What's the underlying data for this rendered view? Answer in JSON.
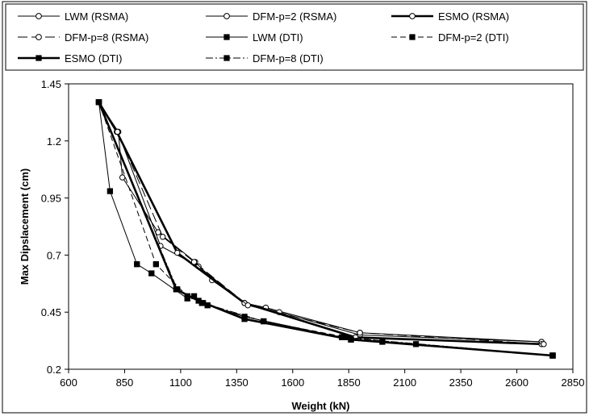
{
  "chart_data": {
    "type": "line",
    "title": "",
    "xlabel": "Weight (kN)",
    "ylabel": "Max Dipslacement (cm)",
    "xlim": [
      600,
      2850
    ],
    "ylim": [
      0.2,
      1.45
    ],
    "xticks": [
      "600",
      "850",
      "1100",
      "1350",
      "1600",
      "1850",
      "2100",
      "2350",
      "2600",
      "2850"
    ],
    "yticks": [
      "0.2",
      "0.45",
      "0.7",
      "0.95",
      "1.2",
      "1.45"
    ],
    "legend_position": "top",
    "series": [
      {
        "name": "LWM (RSMA)",
        "style": "thin-solid",
        "marker": "circle",
        "x": [
          735,
          822,
          840,
          1000,
          1165,
          1240,
          1385,
          1480,
          1900,
          2710
        ],
        "y": [
          1.37,
          1.24,
          1.04,
          0.8,
          0.67,
          0.59,
          0.49,
          0.47,
          0.36,
          0.32
        ]
      },
      {
        "name": "DFM-p=2 (RSMA)",
        "style": "thin-solid",
        "marker": "circle",
        "x": [
          735,
          820,
          1010,
          1180,
          1385,
          1540,
          1900,
          2710
        ],
        "y": [
          1.37,
          1.24,
          0.74,
          0.65,
          0.49,
          0.45,
          0.35,
          0.32
        ]
      },
      {
        "name": "ESMO (RSMA)",
        "style": "thick-solid",
        "marker": "circle",
        "x": [
          735,
          815,
          1085,
          1385,
          1880,
          2710
        ],
        "y": [
          1.37,
          1.24,
          0.71,
          0.49,
          0.34,
          0.31
        ]
      },
      {
        "name": "DFM-p=8 (RSMA)",
        "style": "long-dash",
        "marker": "circle",
        "x": [
          735,
          818,
          1020,
          1160,
          1400,
          1900,
          2720
        ],
        "y": [
          1.37,
          1.24,
          0.78,
          0.67,
          0.48,
          0.36,
          0.31
        ]
      },
      {
        "name": "LWM (DTI)",
        "style": "thin-solid",
        "marker": "square",
        "x": [
          735,
          785,
          905,
          970,
          1130,
          1160,
          1195,
          1385,
          1820,
          1860,
          2000,
          2760
        ],
        "y": [
          1.37,
          0.98,
          0.66,
          0.62,
          0.51,
          0.52,
          0.49,
          0.43,
          0.34,
          0.33,
          0.32,
          0.26
        ]
      },
      {
        "name": "DFM-p=2 (DTI)",
        "style": "dashed",
        "marker": "square",
        "x": [
          735,
          990,
          1130,
          1220,
          1470,
          1840,
          2150,
          2760
        ],
        "y": [
          1.37,
          0.66,
          0.52,
          0.48,
          0.41,
          0.34,
          0.31,
          0.26
        ]
      },
      {
        "name": "ESMO (DTI)",
        "style": "thick-solid",
        "marker": "square",
        "x": [
          735,
          1080,
          1180,
          1385,
          1860,
          2760
        ],
        "y": [
          1.37,
          0.55,
          0.5,
          0.42,
          0.33,
          0.26
        ]
      },
      {
        "name": "DFM-p=8 (DTI)",
        "style": "dash-dot",
        "marker": "square",
        "x": [
          735,
          1085,
          1200,
          1470,
          1820,
          2760
        ],
        "y": [
          1.37,
          0.55,
          0.49,
          0.41,
          0.34,
          0.26
        ]
      }
    ]
  }
}
